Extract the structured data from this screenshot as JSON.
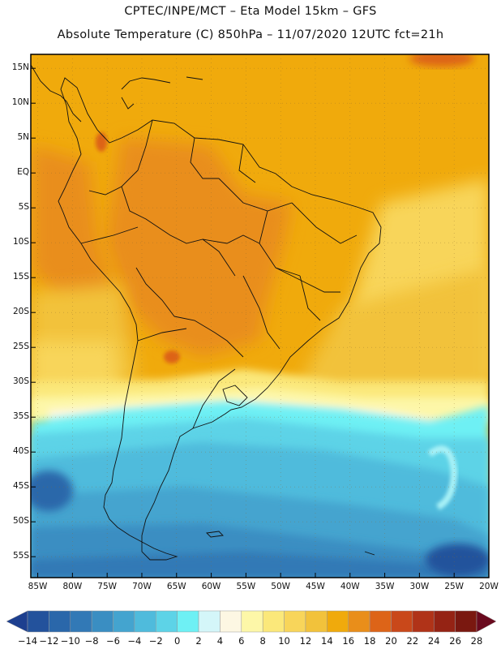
{
  "header": {
    "line1": "CPTEC/INPE/MCT –  Eta Model 15km – GFS",
    "line2": "Absolute Temperature (C) 850hPa – 11/07/2020 12UTC fct=21h"
  },
  "map": {
    "latitude_labels": [
      "15N",
      "10N",
      "5N",
      "EQ",
      "5S",
      "10S",
      "15S",
      "20S",
      "25S",
      "30S",
      "35S",
      "40S",
      "45S",
      "50S",
      "55S"
    ],
    "longitude_labels": [
      "85W",
      "80W",
      "75W",
      "70W",
      "65W",
      "60W",
      "55W",
      "50W",
      "45W",
      "40W",
      "35W",
      "30W",
      "25W",
      "20W"
    ],
    "lat_range": [
      17,
      -58
    ],
    "lon_range": [
      -86,
      -20
    ]
  },
  "colorbar": {
    "labels": [
      "-14",
      "-12",
      "-10",
      "-8",
      "-6",
      "-4",
      "-2",
      "0",
      "2",
      "4",
      "6",
      "8",
      "10",
      "12",
      "14",
      "16",
      "18",
      "20",
      "22",
      "24",
      "26",
      "28"
    ],
    "colors": [
      "#1d3f8f",
      "#23529c",
      "#2a67aa",
      "#3279b6",
      "#3a8ec2",
      "#44a4cf",
      "#4fbbdc",
      "#5dd3e7",
      "#6ef0f4",
      "#d4f6f9",
      "#fdf7e3",
      "#fdf7a8",
      "#fbe87a",
      "#f8d55a",
      "#f2c23b",
      "#f0aa0c",
      "#e98e1a",
      "#dd6418",
      "#c9481a",
      "#b03318",
      "#952314",
      "#7a1810",
      "#6a0a1e"
    ]
  }
}
